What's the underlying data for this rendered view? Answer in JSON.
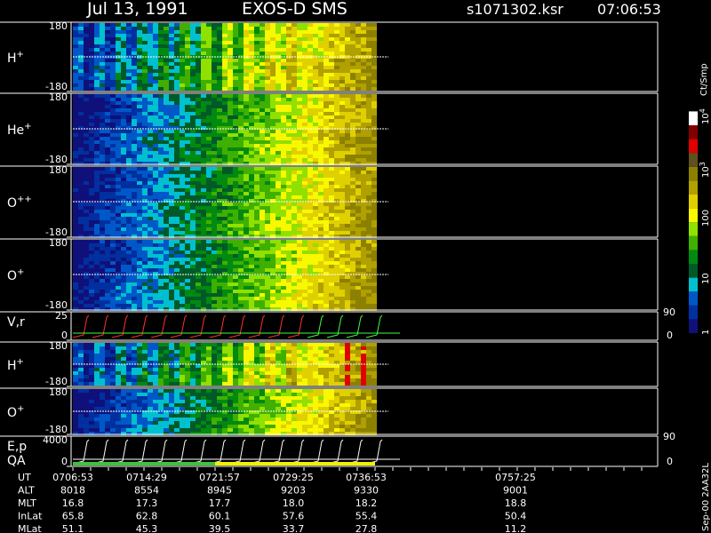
{
  "header": {
    "date": "Jul 13, 1991",
    "instrument": "EXOS-D SMS",
    "file": "s1071302.ksr",
    "time": "07:06:53"
  },
  "panels": [
    {
      "label": "H",
      "sup": "+",
      "ticks": [
        "180",
        "-180"
      ]
    },
    {
      "label": "He",
      "sup": "+",
      "ticks": [
        "180",
        "-180"
      ]
    },
    {
      "label": "O",
      "sup": "++",
      "ticks": [
        "180",
        "-180"
      ]
    },
    {
      "label": "O",
      "sup": "+",
      "ticks": [
        "180",
        "-180"
      ]
    },
    {
      "label": "V,r",
      "ticks": [
        "25",
        "0"
      ],
      "right_ticks": [
        "90",
        "0"
      ]
    },
    {
      "label": "H",
      "sup": "+",
      "ticks": [
        "180",
        "-180"
      ]
    },
    {
      "label": "O",
      "sup": "+",
      "ticks": [
        "180",
        "-180"
      ]
    },
    {
      "label": "E,p",
      "label2": "QA",
      "ticks": [
        "4000",
        "0"
      ],
      "right_ticks": [
        "90",
        "0"
      ]
    }
  ],
  "colorbar": {
    "title": "Ct/Smp",
    "labels": [
      {
        "text": "10",
        "sup": "4"
      },
      {
        "text": "10",
        "sup": "3"
      },
      {
        "text": "100"
      },
      {
        "text": "10"
      },
      {
        "text": "1"
      }
    ]
  },
  "footer": {
    "rows": [
      {
        "label": "UT",
        "values": [
          "0706:53",
          "0714:29",
          "0721:57",
          "0729:25",
          "0736:53",
          "0757:25"
        ]
      },
      {
        "label": "ALT",
        "values": [
          "8018",
          "8554",
          "8945",
          "9203",
          "9330",
          "9001"
        ]
      },
      {
        "label": "MLT",
        "values": [
          "16.8",
          "17.3",
          "17.7",
          "18.0",
          "18.2",
          "18.8"
        ]
      },
      {
        "label": "InLat",
        "values": [
          "65.8",
          "62.8",
          "60.1",
          "57.6",
          "55.4",
          "50.4"
        ]
      },
      {
        "label": "MLat",
        "values": [
          "51.1",
          "45.3",
          "39.5",
          "33.7",
          "27.8",
          "11.2"
        ]
      }
    ]
  },
  "side_label": "Sep-00 2AA32L"
}
